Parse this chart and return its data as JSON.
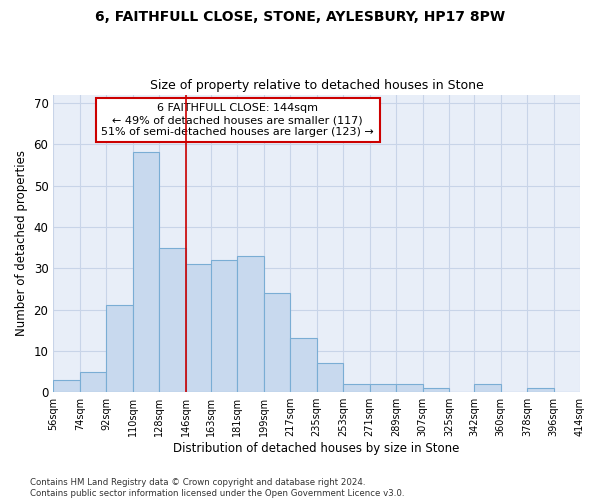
{
  "title1": "6, FAITHFULL CLOSE, STONE, AYLESBURY, HP17 8PW",
  "title2": "Size of property relative to detached houses in Stone",
  "xlabel": "Distribution of detached houses by size in Stone",
  "ylabel": "Number of detached properties",
  "footnote1": "Contains HM Land Registry data © Crown copyright and database right 2024.",
  "footnote2": "Contains public sector information licensed under the Open Government Licence v3.0.",
  "annotation_line1": "6 FAITHFULL CLOSE: 144sqm",
  "annotation_line2": "← 49% of detached houses are smaller (117)",
  "annotation_line3": "51% of semi-detached houses are larger (123) →",
  "bar_color": "#c8d9ee",
  "bar_edge_color": "#7aadd4",
  "redline_color": "#cc0000",
  "annotation_box_edge": "#cc0000",
  "grid_color": "#c8d4e8",
  "bg_color": "#e8eef8",
  "bins_start": [
    56,
    74,
    92,
    110,
    128,
    146,
    163,
    181,
    199,
    217,
    235,
    253,
    271,
    289,
    307,
    325,
    342,
    360,
    378,
    396
  ],
  "bin_width": 18,
  "bin_labels": [
    "56sqm",
    "74sqm",
    "92sqm",
    "110sqm",
    "128sqm",
    "146sqm",
    "163sqm",
    "181sqm",
    "199sqm",
    "217sqm",
    "235sqm",
    "253sqm",
    "271sqm",
    "289sqm",
    "307sqm",
    "325sqm",
    "342sqm",
    "360sqm",
    "378sqm",
    "396sqm",
    "414sqm"
  ],
  "bar_heights": [
    3,
    5,
    21,
    58,
    35,
    31,
    32,
    33,
    24,
    13,
    7,
    2,
    2,
    2,
    1,
    0,
    2,
    0,
    1,
    0
  ],
  "redline_x": 146,
  "ylim": [
    0,
    72
  ],
  "yticks": [
    0,
    10,
    20,
    30,
    40,
    50,
    60,
    70
  ]
}
